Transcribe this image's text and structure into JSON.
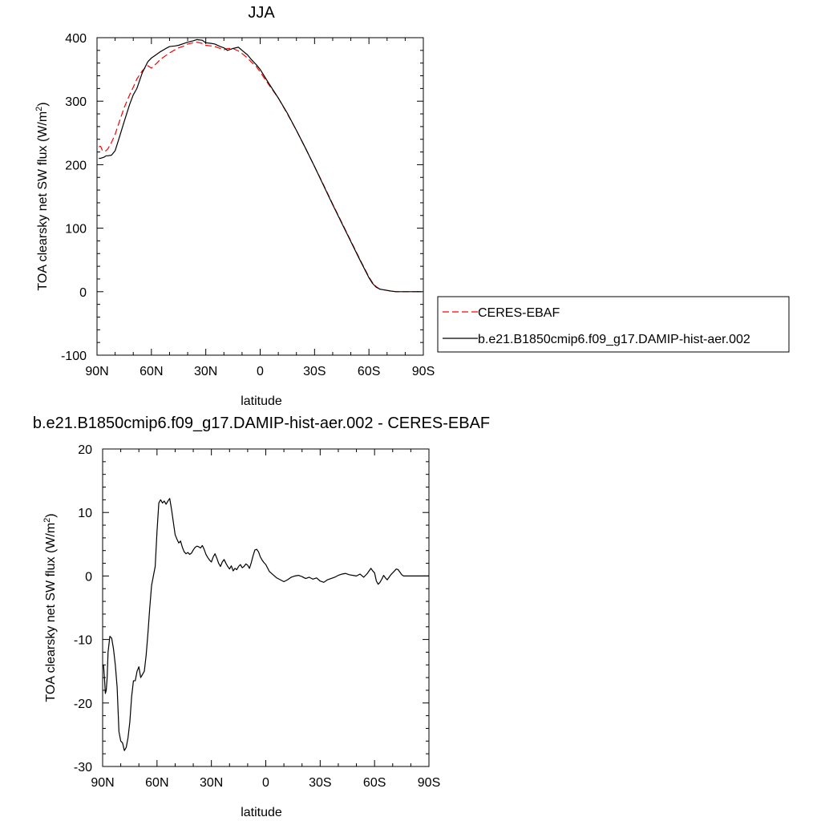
{
  "chart_data": [
    {
      "type": "line",
      "title": "JJA",
      "xlabel": "latitude",
      "ylabel": "TOA clearsky net SW flux (W/m",
      "ylabel_sup": "2",
      "ylabel_end": ")",
      "xlim": [
        90,
        -90
      ],
      "ylim": [
        -100,
        400
      ],
      "x_ticks": [
        90,
        60,
        30,
        0,
        -30,
        -60,
        -90
      ],
      "x_tick_labels": [
        "90N",
        "60N",
        "30N",
        "0",
        "30S",
        "60S",
        "90S"
      ],
      "y_ticks": [
        -100,
        0,
        100,
        200,
        300,
        400
      ],
      "y_tick_labels": [
        "-100",
        "0",
        "100",
        "200",
        "300",
        "400"
      ],
      "legend_position": "right",
      "series": [
        {
          "name": "CERES-EBAF",
          "color": "#ff0000",
          "dash": "dashed",
          "x": [
            89,
            88,
            87,
            86,
            85,
            84,
            82,
            80,
            78,
            75,
            72,
            70,
            68,
            65,
            62,
            60,
            57,
            55,
            52,
            50,
            47,
            45,
            42,
            40,
            37,
            35,
            32,
            30,
            27,
            25,
            22,
            20,
            18,
            15,
            12,
            10,
            7,
            5,
            2,
            0,
            -5,
            -10,
            -15,
            -20,
            -25,
            -30,
            -35,
            -40,
            -45,
            -50,
            -55,
            -60,
            -62,
            -64,
            -66,
            -68,
            -70,
            -72,
            -75,
            -78,
            -80,
            -85,
            -89
          ],
          "y": [
            228,
            229,
            222,
            221,
            222,
            225,
            235,
            248,
            265,
            290,
            310,
            322,
            335,
            348,
            356,
            352,
            360,
            366,
            372,
            376,
            381,
            384,
            387,
            390,
            392,
            393,
            391,
            388,
            387,
            386,
            383,
            381,
            383,
            383,
            379,
            375,
            368,
            362,
            354,
            346,
            325,
            305,
            280,
            254,
            226,
            197,
            168,
            138,
            109,
            80,
            51,
            23,
            14,
            8,
            4,
            3,
            2,
            1,
            0,
            0,
            0,
            0,
            0
          ]
        },
        {
          "name": "b.e21.B1850cmip6.f09_g17.DAMIP-hist-aer.002",
          "color": "#000000",
          "dash": "solid",
          "x": [
            89,
            88,
            87,
            86,
            85,
            84,
            82,
            80,
            78,
            75,
            72,
            70,
            68,
            65,
            62,
            60,
            57,
            55,
            52,
            50,
            47,
            45,
            42,
            40,
            37,
            35,
            32,
            30,
            27,
            25,
            22,
            20,
            18,
            15,
            12,
            10,
            7,
            5,
            2,
            0,
            -5,
            -10,
            -15,
            -20,
            -25,
            -30,
            -35,
            -40,
            -45,
            -50,
            -55,
            -60,
            -62,
            -64,
            -66,
            -68,
            -70,
            -72,
            -75,
            -78,
            -80,
            -85,
            -89
          ],
          "y": [
            210,
            210,
            211,
            212,
            214,
            214,
            215,
            222,
            240,
            268,
            295,
            310,
            320,
            345,
            362,
            368,
            374,
            378,
            383,
            386,
            387,
            388,
            391,
            393,
            395,
            397,
            396,
            392,
            391,
            390,
            386,
            384,
            380,
            383,
            385,
            380,
            373,
            366,
            357,
            350,
            327,
            305,
            281,
            254,
            226,
            197,
            167,
            137,
            108,
            79,
            50,
            22,
            13,
            7,
            4,
            3,
            2,
            1,
            0,
            0,
            0,
            0,
            0
          ]
        }
      ]
    },
    {
      "type": "line",
      "title": "b.e21.B1850cmip6.f09_g17.DAMIP-hist-aer.002 - CERES-EBAF",
      "xlabel": "latitude",
      "ylabel": "TOA clearsky net SW flux (W/m",
      "ylabel_sup": "2",
      "ylabel_end": ")",
      "xlim": [
        90,
        -90
      ],
      "ylim": [
        -30,
        20
      ],
      "x_ticks": [
        90,
        60,
        30,
        0,
        -30,
        -60,
        -90
      ],
      "x_tick_labels": [
        "90N",
        "60N",
        "30N",
        "0",
        "30S",
        "60S",
        "90S"
      ],
      "y_ticks": [
        -30,
        -20,
        -10,
        0,
        10,
        20
      ],
      "y_tick_labels": [
        "-30",
        "-20",
        "-10",
        "0",
        "10",
        "20"
      ],
      "series": [
        {
          "color": "#000000",
          "dash": "solid",
          "x": [
            89.5,
            89,
            88.5,
            88,
            87.5,
            87,
            86,
            85,
            84,
            83,
            82,
            81,
            80,
            79,
            78,
            77,
            76,
            75,
            74,
            73,
            72,
            71,
            70,
            69,
            68,
            67,
            66,
            65,
            64,
            63,
            62,
            61,
            60,
            59,
            58,
            57,
            56,
            55,
            54,
            53,
            52,
            51,
            50,
            49,
            48,
            47,
            46,
            45,
            44,
            43,
            42,
            41,
            40,
            39,
            38,
            37,
            36,
            35,
            34,
            33,
            32,
            31,
            30,
            29,
            28,
            27,
            26,
            25,
            24,
            23,
            22,
            21,
            20,
            19,
            18,
            17,
            16,
            15,
            14,
            13,
            12,
            11,
            10,
            9,
            8,
            7,
            6,
            5,
            4,
            3,
            2,
            1,
            0,
            -2,
            -4,
            -6,
            -8,
            -10,
            -12,
            -14,
            -16,
            -18,
            -20,
            -22,
            -24,
            -26,
            -28,
            -30,
            -32,
            -34,
            -36,
            -38,
            -40,
            -42,
            -44,
            -46,
            -48,
            -50,
            -52,
            -54,
            -56,
            -58,
            -59,
            -60,
            -61,
            -62,
            -63,
            -64,
            -65,
            -66,
            -67,
            -68,
            -69,
            -70,
            -71,
            -72,
            -73,
            -74,
            -75,
            -76,
            -77,
            -78,
            -80,
            -82,
            -85,
            -88,
            -90
          ],
          "y": [
            -14,
            -16,
            -18.5,
            -18,
            -16,
            -12,
            -9.5,
            -9.8,
            -11.5,
            -14,
            -17.5,
            -24.5,
            -26,
            -26.3,
            -27.5,
            -27,
            -25.5,
            -23,
            -19,
            -16.5,
            -16.5,
            -15,
            -14.3,
            -16,
            -15.5,
            -15,
            -12.5,
            -9,
            -5,
            -1.5,
            0,
            1.5,
            7,
            11.5,
            12,
            11.5,
            11.8,
            11.3,
            11.8,
            12.2,
            10.5,
            8.5,
            6.5,
            5.8,
            5.2,
            5.5,
            4.5,
            3.8,
            3.5,
            3.7,
            3.4,
            3.6,
            4.1,
            4.5,
            4.7,
            4.6,
            4.4,
            4.8,
            4.2,
            3.4,
            2.9,
            2.5,
            2.2,
            3.0,
            3.5,
            2.8,
            2.0,
            1.5,
            2.2,
            2.6,
            2.0,
            1.5,
            1.1,
            1.6,
            0.8,
            1.2,
            1.0,
            1.5,
            1.8,
            1.3,
            1.5,
            1.9,
            1.7,
            1.2,
            2.1,
            3.2,
            4.1,
            4.2,
            3.8,
            3.0,
            2.5,
            2.1,
            1.8,
            0.7,
            0.2,
            -0.3,
            -0.6,
            -0.9,
            -0.6,
            -0.2,
            0,
            0.1,
            -0.1,
            -0.4,
            -0.2,
            -0.5,
            -0.3,
            -0.8,
            -1.0,
            -0.6,
            -0.4,
            -0.2,
            0.1,
            0.3,
            0.4,
            0.2,
            0.1,
            0.0,
            0.3,
            -0.2,
            0.4,
            1.2,
            0.8,
            0.5,
            -0.8,
            -1.3,
            -1.0,
            -0.5,
            0.1,
            -0.3,
            -0.6,
            -0.2,
            0.2,
            0.5,
            0.8,
            1.1,
            1.0,
            0.6,
            0.2,
            0.0,
            0.0,
            0.0,
            0.0,
            0.0,
            0.0,
            0.0,
            0.0
          ]
        }
      ]
    }
  ]
}
